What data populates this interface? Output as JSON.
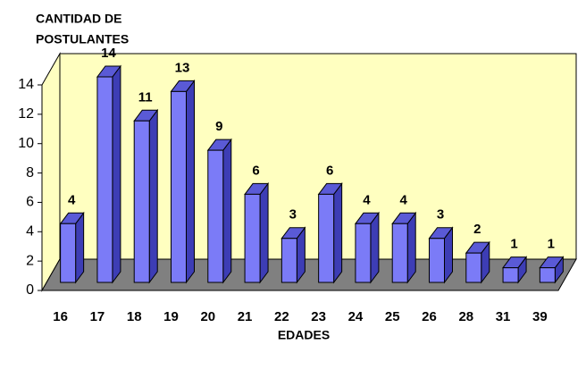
{
  "chart_data": {
    "type": "bar3d",
    "y_label": [
      "CANTIDAD DE",
      "POSTULANTES"
    ],
    "x_label": "EDADES",
    "categories": [
      "16",
      "17",
      "18",
      "19",
      "20",
      "21",
      "22",
      "23",
      "24",
      "25",
      "26",
      "28",
      "31",
      "39"
    ],
    "values": [
      4,
      14,
      11,
      13,
      9,
      6,
      3,
      6,
      4,
      4,
      3,
      2,
      1,
      1
    ],
    "color": "#7b7bf7",
    "wall_color": "#ffffc0",
    "floor_color": "#808080",
    "ylim": [
      0,
      14
    ],
    "yticks": [
      0,
      2,
      4,
      6,
      8,
      10,
      12,
      14
    ],
    "grid": false
  }
}
